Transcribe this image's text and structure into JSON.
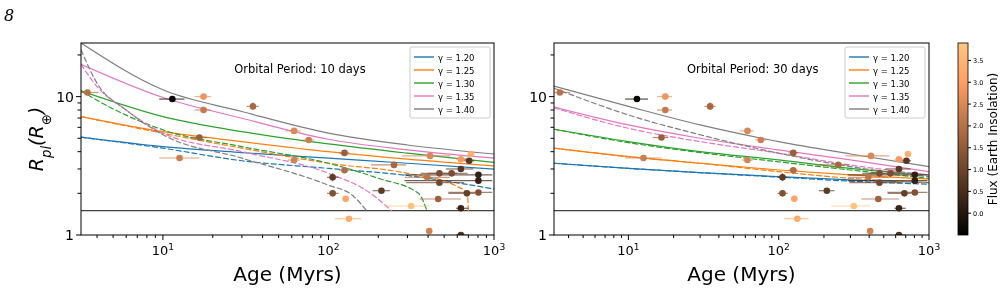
{
  "chart_data": [
    {
      "type": "line",
      "xlabel": "Age (Myrs)",
      "ylabel": "R$_{pl}$(R$_{⊕}$)",
      "annotations": [
        "Orbital Period: 10 days",
        "8"
      ],
      "log": "xy",
      "xlim": [
        3.2,
        1000
      ],
      "ylim": [
        1,
        24.4
      ],
      "xticks": [
        {
          "value": 4,
          "label": null
        },
        {
          "value": 5,
          "label": null
        },
        {
          "value": 6,
          "label": null
        },
        {
          "value": 7,
          "label": null
        },
        {
          "value": 8,
          "label": null
        },
        {
          "value": 9,
          "label": null
        },
        {
          "value": 10,
          "label": "10$^{1}$"
        },
        {
          "value": 20,
          "label": null
        },
        {
          "value": 30,
          "label": null
        },
        {
          "value": 40,
          "label": null
        },
        {
          "value": 50,
          "label": null
        },
        {
          "value": 60,
          "label": null
        },
        {
          "value": 70,
          "label": null
        },
        {
          "value": 80,
          "label": null
        },
        {
          "value": 90,
          "label": null
        },
        {
          "value": 100,
          "label": "10$^{2}$"
        },
        {
          "value": 200,
          "label": null
        },
        {
          "value": 300,
          "label": null
        },
        {
          "value": 400,
          "label": null
        },
        {
          "value": 500,
          "label": null
        },
        {
          "value": 600,
          "label": null
        },
        {
          "value": 700,
          "label": null
        },
        {
          "value": 800,
          "label": null
        },
        {
          "value": 900,
          "label": null
        },
        {
          "value": 1000,
          "label": "10$^{3}$"
        }
      ],
      "yticks": [
        {
          "value": 1,
          "label": "1"
        },
        {
          "value": 2,
          "label": null
        },
        {
          "value": 3,
          "label": null
        },
        {
          "value": 4,
          "label": null
        },
        {
          "value": 5,
          "label": null
        },
        {
          "value": 6,
          "label": null
        },
        {
          "value": 7,
          "label": null
        },
        {
          "value": 8,
          "label": null
        },
        {
          "value": 9,
          "label": null
        },
        {
          "value": 10,
          "label": "10"
        },
        {
          "value": 20,
          "label": null
        }
      ],
      "grid": false,
      "legend": "top right",
      "ref_lines": [
        {
          "axis": "y",
          "value": 1.5,
          "color": "#404040"
        }
      ],
      "series": [
        {
          "name": "γ = 1.20",
          "color": "#1f77b4",
          "line_style": "solid",
          "x": [
            3.2,
            10,
            30,
            100,
            300,
            1000
          ],
          "values": [
            5.09,
            4.35,
            3.94,
            3.59,
            3.3,
            2.99
          ]
        },
        {
          "name": "γ = 1.25",
          "color": "#ff7f0e",
          "line_style": "solid",
          "x": [
            3.2,
            10,
            30,
            100,
            300,
            1000
          ],
          "values": [
            7.17,
            5.58,
            4.73,
            4.0,
            3.53,
            3.16
          ]
        },
        {
          "name": "γ = 1.30",
          "color": "#2ca02c",
          "line_style": "solid",
          "x": [
            3.2,
            10,
            30,
            100,
            300,
            1000
          ],
          "values": [
            11.0,
            7.17,
            5.58,
            4.55,
            3.9,
            3.35
          ]
        },
        {
          "name": "γ = 1.35",
          "color": "#e377c2",
          "line_style": "solid",
          "x": [
            3.2,
            10,
            30,
            100,
            300,
            1000
          ],
          "values": [
            17.1,
            9.85,
            6.98,
            4.92,
            4.12,
            3.59
          ]
        },
        {
          "name": "γ = 1.40",
          "color": "#7f7f7f",
          "line_style": "solid",
          "x": [
            3.2,
            10,
            30,
            100,
            300,
            1000
          ],
          "values": [
            24.4,
            11.2,
            7.8,
            5.44,
            4.47,
            3.85
          ]
        },
        {
          "color": "#1f77b4",
          "line_style": "dashed",
          "x": [
            3.2,
            10,
            30,
            100,
            300,
            1000
          ],
          "values": [
            5.09,
            4.24,
            3.44,
            3.03,
            2.69,
            2.15
          ]
        },
        {
          "color": "#ff7f0e",
          "line_style": "dashed",
          "x": [
            3.2,
            10,
            30,
            100,
            300,
            600,
            690,
            700
          ],
          "values": [
            7.17,
            5.44,
            4.24,
            3.3,
            2.79,
            2.24,
            2.0,
            1.5
          ]
        },
        {
          "color": "#2ca02c",
          "line_style": "dashed",
          "x": [
            3.2,
            4,
            10,
            30,
            100,
            200,
            350,
            393
          ],
          "values": [
            11.0,
            9.4,
            5.75,
            4.35,
            3.3,
            2.57,
            2.0,
            1.5
          ]
        },
        {
          "color": "#e377c2",
          "line_style": "dashed",
          "x": [
            3.2,
            4,
            6,
            10,
            30,
            100,
            180,
            240
          ],
          "values": [
            17.1,
            11.8,
            8.0,
            5.44,
            4.0,
            2.79,
            2.0,
            1.5
          ]
        },
        {
          "color": "#7f7f7f",
          "line_style": "dashed",
          "x": [
            3.2,
            4,
            6,
            10,
            30,
            100,
            140,
            170
          ],
          "values": [
            21.8,
            12.5,
            8.0,
            5.3,
            3.59,
            2.29,
            1.93,
            1.5
          ]
        },
        {
          "type": "scatter",
          "marker": "circle",
          "x": [
            3.5,
            11.4,
            17.6,
            17.6,
            35,
            62,
            76,
            16.6,
            12.6,
            62,
            125,
            125,
            106,
            106,
            127,
            209,
            249,
            133,
            316,
            411,
            395,
            468,
            468,
            460,
            555,
            631,
            631,
            631,
            406,
            631,
            725,
            708,
            805,
            805,
            805,
            686
          ],
          "values": [
            10.7,
            9.6,
            10.0,
            8.0,
            8.5,
            5.65,
            4.86,
            5.06,
            3.6,
            3.48,
            3.92,
            2.94,
            2.61,
            2.0,
            1.83,
            2.09,
            3.21,
            1.31,
            1.62,
            3.73,
            2.61,
            2.79,
            2.39,
            1.82,
            2.79,
            3.0,
            1.56,
            1.0,
            1.07,
            3.53,
            3.85,
            3.44,
            2.72,
            2.47,
            2.03,
            2.0
          ],
          "colors": [
            "#b57148",
            "#070503",
            "#ef955f",
            "#c47a4e",
            "#a76842",
            "#d98857",
            "#cb7f51",
            "#985f3d",
            "#cb7f51",
            "#d28354",
            "#985f3d",
            "#ae6d45",
            "#5e3b25",
            "#825134",
            "#ffa368",
            "#5e3b25",
            "#a76842",
            "#ffac6e",
            "#ffc37c",
            "#d98857",
            "#bc764b",
            "#7b4d31",
            "#74482e",
            "#9f643f",
            "#7b4d31",
            "#573623",
            "#3a2417",
            "#503220",
            "#d28354",
            "#f69a62",
            "#ffb070",
            "#573623",
            "#332014",
            "#332014",
            "#825134",
            "#653f28"
          ],
          "xerrors": [
            [
              3.2,
              4.1
            ],
            [
              9.5,
              13.5
            ],
            [
              15.5,
              19.5
            ],
            [
              15.5,
              19.5
            ],
            [
              32,
              38
            ],
            [
              55,
              68
            ],
            [
              70,
              82
            ],
            [
              14.5,
              18.5
            ],
            [
              9.5,
              16.6
            ],
            [
              57,
              67
            ],
            [
              116,
              134
            ],
            [
              116,
              134
            ],
            [
              98,
              115
            ],
            [
              98,
              115
            ],
            null,
            [
              185,
              235
            ],
            [
              181,
              295
            ],
            [
              109,
              158
            ],
            [
              224,
              406
            ],
            [
              278,
              545
            ],
            [
              290,
              540
            ],
            [
              360,
              600
            ],
            [
              295,
              660
            ],
            [
              355,
              631
            ],
            [
              398,
              692
            ],
            [
              512,
              751
            ],
            [
              590,
              700
            ],
            [
              590,
              700
            ],
            null,
            [
              590,
              680
            ],
            null,
            [
              660,
              760
            ],
            [
              288,
              977
            ],
            [
              288,
              977
            ],
            [
              530,
              977
            ],
            [
              530,
              766
            ]
          ],
          "errors": [
            null,
            [
              9.2,
              10.0
            ],
            null,
            null,
            [
              8.0,
              9.1
            ],
            null,
            null,
            null,
            null,
            null,
            null,
            null,
            [
              2.45,
              2.8
            ],
            null,
            null,
            null,
            null,
            null,
            null,
            null,
            null,
            null,
            null,
            null,
            [
              2.65,
              2.95
            ],
            null,
            null,
            null,
            null,
            null,
            null,
            [
              3.3,
              3.6
            ],
            null,
            null,
            null,
            null
          ]
        }
      ]
    },
    {
      "type": "line",
      "xlabel": "Age (Myrs)",
      "annotations": [
        "Orbital Period: 30 days"
      ],
      "log": "xy",
      "xlim": [
        3.2,
        1000
      ],
      "ylim": [
        1,
        24.4
      ],
      "xticks": [
        {
          "value": 4,
          "label": null
        },
        {
          "value": 5,
          "label": null
        },
        {
          "value": 6,
          "label": null
        },
        {
          "value": 7,
          "label": null
        },
        {
          "value": 8,
          "label": null
        },
        {
          "value": 9,
          "label": null
        },
        {
          "value": 10,
          "label": "10$^{1}$"
        },
        {
          "value": 20,
          "label": null
        },
        {
          "value": 30,
          "label": null
        },
        {
          "value": 40,
          "label": null
        },
        {
          "value": 50,
          "label": null
        },
        {
          "value": 60,
          "label": null
        },
        {
          "value": 70,
          "label": null
        },
        {
          "value": 80,
          "label": null
        },
        {
          "value": 90,
          "label": null
        },
        {
          "value": 100,
          "label": "10$^{2}$"
        },
        {
          "value": 200,
          "label": null
        },
        {
          "value": 300,
          "label": null
        },
        {
          "value": 400,
          "label": null
        },
        {
          "value": 500,
          "label": null
        },
        {
          "value": 600,
          "label": null
        },
        {
          "value": 700,
          "label": null
        },
        {
          "value": 800,
          "label": null
        },
        {
          "value": 900,
          "label": null
        },
        {
          "value": 1000,
          "label": "10$^{3}$"
        }
      ],
      "yticks": [
        {
          "value": 1,
          "label": "1"
        },
        {
          "value": 2,
          "label": null
        },
        {
          "value": 3,
          "label": null
        },
        {
          "value": 4,
          "label": null
        },
        {
          "value": 5,
          "label": null
        },
        {
          "value": 6,
          "label": null
        },
        {
          "value": 7,
          "label": null
        },
        {
          "value": 8,
          "label": null
        },
        {
          "value": 9,
          "label": null
        },
        {
          "value": 10,
          "label": "10"
        },
        {
          "value": 20,
          "label": null
        }
      ],
      "grid": false,
      "legend": "top right",
      "clabel": "Flux (Earth Insolation)",
      "clim": [
        -0.5,
        3.9
      ],
      "cticks": [
        {
          "value": 0,
          "label": "0.0"
        },
        {
          "value": 0.5,
          "label": "0.5"
        },
        {
          "value": 1,
          "label": "1.0"
        },
        {
          "value": 1.5,
          "label": "1.5"
        },
        {
          "value": 2,
          "label": "2.0"
        },
        {
          "value": 2.5,
          "label": "2.5"
        },
        {
          "value": 3,
          "label": "3.0"
        },
        {
          "value": 3.5,
          "label": "3.5"
        }
      ],
      "ref_lines": [
        {
          "axis": "y",
          "value": 1.5,
          "color": "#404040"
        }
      ],
      "series": [
        {
          "name": "γ = 1.20",
          "color": "#1f77b4",
          "line_style": "solid",
          "x": [
            3.2,
            10,
            30,
            100,
            300,
            1000
          ],
          "values": [
            3.3,
            3.03,
            2.82,
            2.64,
            2.5,
            2.39
          ]
        },
        {
          "name": "γ = 1.25",
          "color": "#ff7f0e",
          "line_style": "solid",
          "x": [
            3.2,
            10,
            30,
            100,
            300,
            1000
          ],
          "values": [
            4.24,
            3.68,
            3.3,
            2.95,
            2.72,
            2.53
          ]
        },
        {
          "name": "γ = 1.30",
          "color": "#2ca02c",
          "line_style": "solid",
          "x": [
            3.2,
            10,
            30,
            100,
            300,
            1000
          ],
          "values": [
            5.81,
            4.73,
            4.0,
            3.49,
            3.03,
            2.72
          ]
        },
        {
          "name": "γ = 1.35",
          "color": "#e377c2",
          "line_style": "solid",
          "x": [
            3.2,
            10,
            30,
            100,
            300,
            1000
          ],
          "values": [
            8.4,
            6.24,
            5.0,
            4.12,
            3.49,
            2.87
          ]
        },
        {
          "name": "γ = 1.40",
          "color": "#7f7f7f",
          "line_style": "solid",
          "x": [
            3.2,
            10,
            30,
            100,
            300,
            1000
          ],
          "values": [
            11.9,
            8.5,
            6.24,
            4.73,
            3.85,
            3.12
          ]
        },
        {
          "color": "#1f77b4",
          "line_style": "dashed",
          "x": [
            3.2,
            10,
            30,
            100,
            300,
            1000
          ],
          "values": [
            3.3,
            3.03,
            2.82,
            2.62,
            2.45,
            2.33
          ]
        },
        {
          "color": "#ff7f0e",
          "line_style": "dashed",
          "x": [
            3.2,
            10,
            30,
            100,
            300,
            1000
          ],
          "values": [
            4.24,
            3.68,
            3.3,
            2.87,
            2.57,
            2.39
          ]
        },
        {
          "color": "#2ca02c",
          "line_style": "dashed",
          "x": [
            3.2,
            10,
            30,
            100,
            300,
            1000
          ],
          "values": [
            5.81,
            4.65,
            3.94,
            3.38,
            2.95,
            2.57
          ]
        },
        {
          "color": "#e377c2",
          "line_style": "dashed",
          "x": [
            3.2,
            10,
            30,
            100,
            300,
            1000
          ],
          "values": [
            8.3,
            5.9,
            4.73,
            3.9,
            3.2,
            2.72
          ]
        },
        {
          "color": "#7f7f7f",
          "line_style": "dashed",
          "x": [
            3.2,
            10,
            30,
            100,
            300,
            1000
          ],
          "values": [
            11.5,
            7.37,
            5.3,
            3.9,
            3.12,
            2.64
          ]
        },
        {
          "type": "scatter",
          "marker": "circle",
          "x": [
            3.5,
            11.4,
            17.6,
            17.6,
            35,
            62,
            76,
            16.6,
            12.6,
            62,
            125,
            125,
            106,
            106,
            127,
            209,
            249,
            133,
            316,
            411,
            395,
            468,
            468,
            460,
            555,
            631,
            631,
            631,
            406,
            631,
            725,
            708,
            805,
            805,
            805,
            686
          ],
          "values": [
            10.7,
            9.6,
            10.0,
            8.0,
            8.5,
            5.65,
            4.86,
            5.06,
            3.6,
            3.48,
            3.92,
            2.94,
            2.61,
            2.0,
            1.83,
            2.09,
            3.21,
            1.31,
            1.62,
            3.73,
            2.61,
            2.79,
            2.39,
            1.82,
            2.79,
            3.0,
            1.56,
            1.0,
            1.07,
            3.53,
            3.85,
            3.44,
            2.72,
            2.47,
            2.03,
            2.0
          ],
          "colors": [
            "#b57148",
            "#070503",
            "#ef955f",
            "#c47a4e",
            "#a76842",
            "#d98857",
            "#cb7f51",
            "#985f3d",
            "#cb7f51",
            "#d28354",
            "#985f3d",
            "#ae6d45",
            "#5e3b25",
            "#825134",
            "#ffa368",
            "#5e3b25",
            "#a76842",
            "#ffac6e",
            "#ffc37c",
            "#d98857",
            "#bc764b",
            "#7b4d31",
            "#74482e",
            "#9f643f",
            "#7b4d31",
            "#573623",
            "#3a2417",
            "#503220",
            "#d28354",
            "#f69a62",
            "#ffb070",
            "#573623",
            "#332014",
            "#332014",
            "#825134",
            "#653f28"
          ],
          "xerrors": [
            [
              3.2,
              4.1
            ],
            [
              9.5,
              13.5
            ],
            [
              15.5,
              19.5
            ],
            [
              15.5,
              19.5
            ],
            [
              32,
              38
            ],
            [
              55,
              68
            ],
            [
              70,
              82
            ],
            [
              14.5,
              18.5
            ],
            [
              9.5,
              16.6
            ],
            [
              57,
              67
            ],
            [
              116,
              134
            ],
            [
              116,
              134
            ],
            [
              98,
              115
            ],
            [
              98,
              115
            ],
            null,
            [
              185,
              235
            ],
            [
              181,
              295
            ],
            [
              109,
              158
            ],
            [
              224,
              406
            ],
            [
              278,
              545
            ],
            [
              290,
              540
            ],
            [
              360,
              600
            ],
            [
              295,
              660
            ],
            [
              355,
              631
            ],
            [
              398,
              692
            ],
            [
              512,
              751
            ],
            [
              590,
              700
            ],
            [
              590,
              700
            ],
            null,
            [
              590,
              680
            ],
            null,
            [
              660,
              760
            ],
            [
              288,
              977
            ],
            [
              288,
              977
            ],
            [
              530,
              977
            ],
            [
              530,
              766
            ]
          ],
          "errors": [
            null,
            [
              9.2,
              10.0
            ],
            null,
            null,
            [
              8.0,
              9.1
            ],
            null,
            null,
            null,
            null,
            null,
            null,
            null,
            [
              2.45,
              2.8
            ],
            null,
            null,
            null,
            null,
            null,
            null,
            null,
            null,
            null,
            null,
            null,
            [
              2.65,
              2.95
            ],
            null,
            null,
            null,
            null,
            null,
            null,
            [
              3.3,
              3.6
            ],
            null,
            null,
            null,
            null
          ]
        }
      ]
    }
  ]
}
